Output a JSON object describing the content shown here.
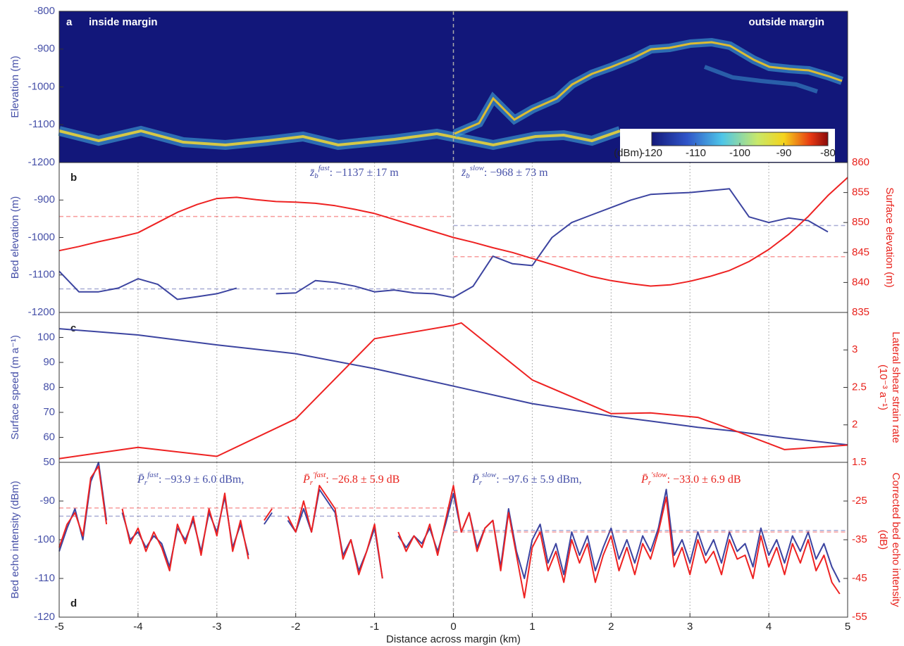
{
  "chart_data": [
    {
      "type": "radargram",
      "panel_label": "a",
      "ylabel": "Elevation (m)",
      "left_text": "inside margin",
      "right_text": "outside margin",
      "xlim": [
        -5,
        5
      ],
      "ylim": [
        -1200,
        -800
      ],
      "yticks": [
        -1200,
        -1100,
        -1000,
        -900,
        -800
      ],
      "vline": 0,
      "colorbar": {
        "label": "(dBm)",
        "clim": [
          -120,
          -80
        ],
        "ticks": [
          -120,
          -110,
          -100,
          -90,
          -80
        ]
      }
    },
    {
      "type": "line",
      "panel_label": "b",
      "ylabel": "Bed elevation (m)",
      "y2label": "Surface elevation (m)",
      "grid": true,
      "vline": 0,
      "xlim": [
        -5,
        5
      ],
      "ylim": [
        -1200,
        -800
      ],
      "yticks": [
        -1200,
        -1100,
        -1000,
        -900
      ],
      "y2lim": [
        835,
        860
      ],
      "y2ticks": [
        835,
        840,
        845,
        850,
        855,
        860
      ],
      "x": [
        -5,
        -4.75,
        -4.5,
        -4.25,
        -4,
        -3.75,
        -3.5,
        -3.25,
        -3,
        -2.75,
        -2.5,
        -2.25,
        -2,
        -1.75,
        -1.5,
        -1.25,
        -1,
        -0.75,
        -0.5,
        -0.25,
        0,
        0.25,
        0.5,
        0.75,
        1,
        1.25,
        1.5,
        1.75,
        2,
        2.25,
        2.5,
        2.75,
        3,
        3.25,
        3.5,
        3.75,
        4,
        4.25,
        4.5,
        4.75,
        5
      ],
      "series": [
        {
          "name": "Bed elevation",
          "color": "#3c44a0",
          "axis": "y",
          "means": [
            -1137,
            -968
          ],
          "values": [
            -1090,
            -1145,
            -1145,
            -1135,
            -1110,
            -1125,
            -1165,
            -1158,
            -1150,
            -1135,
            null,
            -1150,
            -1148,
            -1115,
            -1120,
            -1130,
            -1145,
            -1140,
            -1148,
            -1150,
            -1160,
            -1130,
            -1050,
            -1070,
            -1075,
            -1000,
            -960,
            -940,
            -920,
            -900,
            -885,
            -882,
            -880,
            -875,
            -870,
            -945,
            -960,
            -948,
            -955,
            -985,
            null
          ]
        },
        {
          "name": "Surface elevation",
          "color": "#ee2222",
          "axis": "y2",
          "means": [
            851,
            844.3
          ],
          "values": [
            845.3,
            846,
            846.8,
            847.5,
            848.3,
            850,
            851.7,
            853,
            854,
            854.2,
            853.8,
            853.5,
            853.4,
            853.2,
            852.8,
            852.2,
            851.5,
            850.5,
            849.5,
            848.5,
            847.5,
            846.7,
            845.8,
            845,
            844,
            843,
            842,
            841,
            840.3,
            839.8,
            839.4,
            839.6,
            840.2,
            841,
            842,
            843.5,
            845.5,
            848,
            851,
            854.5,
            857.5
          ]
        }
      ],
      "annotations": [
        {
          "symbol": "z̄",
          "sub": "b",
          "sup": "fast",
          "text": ": −1137 ± 17 m"
        },
        {
          "symbol": "z̄",
          "sub": "b",
          "sup": "slow",
          "text": ": −968 ± 73 m"
        }
      ]
    },
    {
      "type": "line",
      "panel_label": "c",
      "ylabel": "Surface speed (m a⁻¹)",
      "y2label": [
        "Lateral shear strain rate",
        "(10⁻³ a⁻¹)"
      ],
      "grid": true,
      "vline": 0,
      "xlim": [
        -5,
        5
      ],
      "ylim": [
        50,
        110
      ],
      "yticks": [
        50,
        60,
        70,
        80,
        90,
        100
      ],
      "y2lim": [
        1.5,
        3.5
      ],
      "y2ticks": [
        1.5,
        2,
        2.5,
        3
      ],
      "x": [
        -5,
        -4,
        -3,
        -2,
        -1,
        0,
        0.1,
        1,
        2,
        2.5,
        3.1,
        3.5,
        4.2,
        5
      ],
      "series": [
        {
          "name": "Surface speed",
          "color": "#3c44a0",
          "axis": "y",
          "values": [
            103.5,
            101,
            97,
            93.5,
            87.5,
            80.5,
            79.8,
            73.5,
            68.5,
            66.5,
            64,
            62.7,
            59.8,
            57
          ]
        },
        {
          "name": "Lateral shear strain rate",
          "color": "#ee2222",
          "axis": "y2",
          "values": [
            1.55,
            1.7,
            1.58,
            2.08,
            3.15,
            3.33,
            3.36,
            2.6,
            2.15,
            2.16,
            2.1,
            1.95,
            1.67,
            1.73
          ]
        }
      ]
    },
    {
      "type": "line",
      "panel_label": "d",
      "ylabel": "Bed echo intensity (dBm)",
      "y2label": [
        "Corrected bed echo intensity",
        "(dB)"
      ],
      "xlabel": "Distance across margin (km)",
      "grid": true,
      "vline": 0,
      "xlim": [
        -5,
        5
      ],
      "xticks": [
        -5,
        -4,
        -3,
        -2,
        -1,
        0,
        1,
        2,
        3,
        4,
        5
      ],
      "ylim": [
        -120,
        -80
      ],
      "yticks": [
        -120,
        -110,
        -100,
        -90
      ],
      "y2lim": [
        -55,
        -15
      ],
      "y2ticks": [
        -55,
        -45,
        -35,
        -25
      ],
      "x": [
        -5,
        -4.9,
        -4.8,
        -4.7,
        -4.6,
        -4.5,
        -4.4,
        -4.3,
        -4.2,
        -4.1,
        -4,
        -3.9,
        -3.8,
        -3.7,
        -3.6,
        -3.5,
        -3.4,
        -3.3,
        -3.2,
        -3.1,
        -3,
        -2.9,
        -2.8,
        -2.7,
        -2.6,
        -2.5,
        -2.4,
        -2.3,
        -2.2,
        -2.1,
        -2,
        -1.9,
        -1.8,
        -1.7,
        -1.6,
        -1.5,
        -1.4,
        -1.3,
        -1.2,
        -1.1,
        -1,
        -0.9,
        -0.8,
        -0.7,
        -0.6,
        -0.5,
        -0.4,
        -0.3,
        -0.2,
        -0.1,
        0,
        0.1,
        0.2,
        0.3,
        0.4,
        0.5,
        0.6,
        0.7,
        0.8,
        0.9,
        1,
        1.1,
        1.2,
        1.3,
        1.4,
        1.5,
        1.6,
        1.7,
        1.8,
        1.9,
        2,
        2.1,
        2.2,
        2.3,
        2.4,
        2.5,
        2.6,
        2.7,
        2.8,
        2.9,
        3,
        3.1,
        3.2,
        3.3,
        3.4,
        3.5,
        3.6,
        3.7,
        3.8,
        3.9,
        4,
        4.1,
        4.2,
        4.3,
        4.4,
        4.5,
        4.6,
        4.7,
        4.8,
        4.9,
        5
      ],
      "series": [
        {
          "name": "Bed echo intensity",
          "color": "#3c44a0",
          "axis": "y",
          "means": [
            -93.9,
            -97.6
          ],
          "values": [
            -103,
            -97,
            -92,
            -100,
            -85,
            -80,
            -95,
            null,
            -93,
            -100,
            -98,
            -102,
            -99,
            -101,
            -107,
            -97,
            -100,
            -95,
            -103,
            -93,
            -98,
            -89,
            -102,
            -96,
            -104,
            null,
            -96,
            -93,
            null,
            -95,
            -98,
            -92,
            -98,
            -87,
            -90,
            -93,
            -104,
            -100,
            -108,
            -103,
            -97,
            -110,
            null,
            -99,
            -102,
            -99,
            -101,
            -97,
            -103,
            -96,
            -88,
            -98,
            -93,
            -102,
            -97,
            -95,
            -107,
            -92,
            -103,
            -110,
            -100,
            -96,
            -106,
            -101,
            -109,
            -98,
            -104,
            -99,
            -108,
            -102,
            -97,
            -105,
            -100,
            -106,
            -99,
            -103,
            -97,
            -87,
            -104,
            -100,
            -106,
            -98,
            -104,
            -100,
            -106,
            -98,
            -103,
            -101,
            -107,
            -97,
            -104,
            -100,
            -106,
            -99,
            -103,
            -98,
            -105,
            -101,
            -107,
            -111,
            null
          ]
        },
        {
          "name": "Corrected bed echo intensity",
          "color": "#ee2222",
          "axis": "y2",
          "means": [
            -26.8,
            -33.0
          ],
          "values": [
            -37,
            -31,
            -28,
            -34,
            -19,
            -16,
            -31,
            null,
            -27,
            -36,
            -32,
            -38,
            -33,
            -37,
            -43,
            -31,
            -36,
            -29,
            -39,
            -27,
            -34,
            -23,
            -38,
            -30,
            -40,
            null,
            -30,
            -27,
            null,
            -29,
            -33,
            -25,
            -33,
            -21,
            -24,
            -27,
            -40,
            -35,
            -44,
            -38,
            -31,
            -45,
            null,
            -33,
            -38,
            -34,
            -37,
            -31,
            -39,
            -30,
            -21,
            -33,
            -28,
            -38,
            -32,
            -30,
            -43,
            -28,
            -39,
            -50,
            -37,
            -33,
            -43,
            -38,
            -46,
            -35,
            -41,
            -36,
            -46,
            -39,
            -34,
            -43,
            -37,
            -44,
            -36,
            -40,
            -33,
            -24,
            -42,
            -37,
            -44,
            -35,
            -41,
            -38,
            -44,
            -35,
            -40,
            -39,
            -45,
            -34,
            -42,
            -37,
            -44,
            -36,
            -41,
            -35,
            -43,
            -39,
            -46,
            -49,
            null
          ]
        }
      ],
      "annotations": [
        {
          "symbol": "P̄",
          "sub": "r",
          "sup": "fast",
          "text": ": −93.9 ± 6.0 dBm,"
        },
        {
          "symbol": "P̄",
          "sub": "r",
          "sup": "′fast",
          "text": ": −26.8 ± 5.9 dB"
        },
        {
          "symbol": "P̄",
          "sub": "r",
          "sup": "slow",
          "text": ": −97.6 ± 5.9 dBm,"
        },
        {
          "symbol": "P̄",
          "sub": "r",
          "sup": "′slow",
          "text": ": −33.0 ± 6.9 dB"
        }
      ]
    }
  ]
}
